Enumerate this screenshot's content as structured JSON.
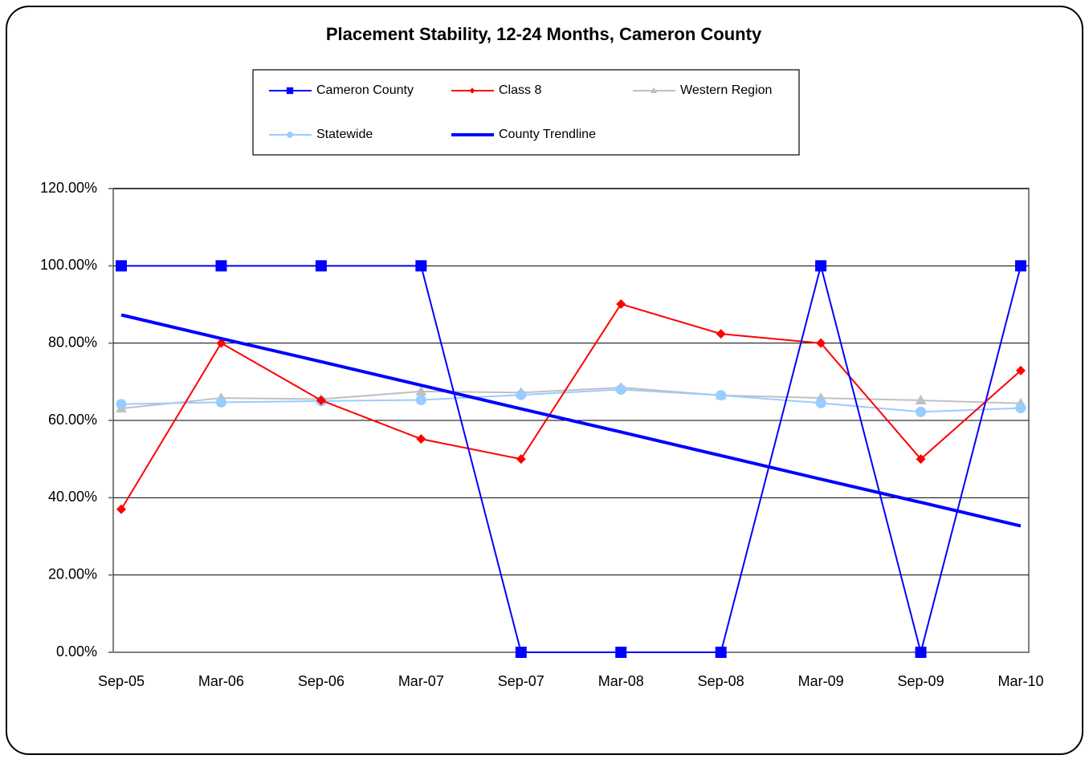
{
  "chart_data": {
    "type": "line",
    "title": "Placement Stability, 12-24 Months, Cameron County",
    "categories": [
      "Sep-05",
      "Mar-06",
      "Sep-06",
      "Mar-07",
      "Sep-07",
      "Mar-08",
      "Sep-08",
      "Mar-09",
      "Sep-09",
      "Mar-10"
    ],
    "series": [
      {
        "name": "Cameron County",
        "color": "#0000ff",
        "marker": "square",
        "values": [
          100,
          100,
          100,
          100,
          0,
          0,
          0,
          100,
          0,
          100
        ]
      },
      {
        "name": "Class 8",
        "color": "#ff0000",
        "marker": "diamond",
        "values": [
          37,
          80,
          65.2,
          55.2,
          50,
          90.1,
          82.4,
          80,
          50,
          72.9
        ]
      },
      {
        "name": "Western Region",
        "color": "#c0c0c0",
        "marker": "triangle",
        "values": [
          63.1,
          65.8,
          65.5,
          67.5,
          67.2,
          68.5,
          66.5,
          65.8,
          65.2,
          64.4
        ]
      },
      {
        "name": "Statewide",
        "color": "#99ccff",
        "marker": "circle",
        "values": [
          64.2,
          64.7,
          65.0,
          65.3,
          66.6,
          68.0,
          66.5,
          64.5,
          62.2,
          63.2
        ]
      },
      {
        "name": "County Trendline",
        "color": "#0000ff",
        "marker": "none",
        "values": [
          87.3,
          81.2,
          75.2,
          69.1,
          63.0,
          57.0,
          50.9,
          44.8,
          38.8,
          32.7
        ]
      }
    ],
    "ylim": [
      0,
      120
    ],
    "yticks": [
      {
        "value": 0,
        "label": "0.00%"
      },
      {
        "value": 20,
        "label": "20.00%"
      },
      {
        "value": 40,
        "label": "40.00%"
      },
      {
        "value": 60,
        "label": "60.00%"
      },
      {
        "value": 80,
        "label": "80.00%"
      },
      {
        "value": 100,
        "label": "100.00%"
      },
      {
        "value": 120,
        "label": "120.00%"
      }
    ],
    "grid": true,
    "legend": "top"
  }
}
